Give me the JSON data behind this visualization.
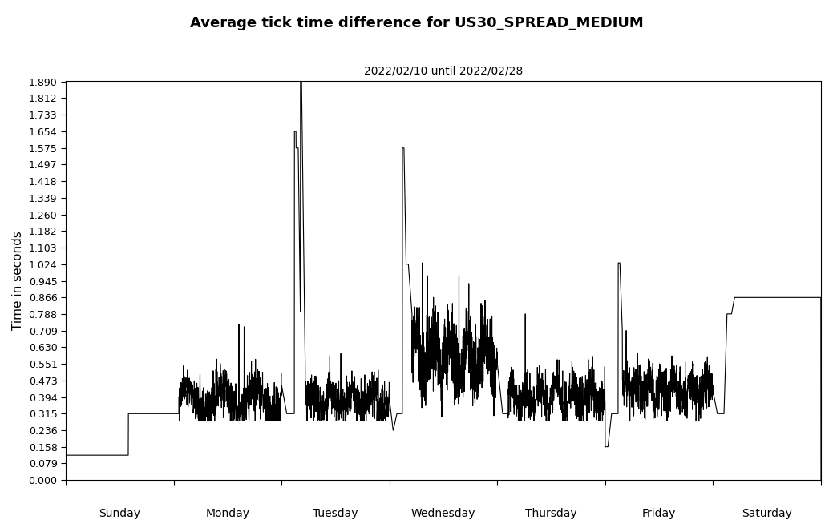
{
  "title": "Average tick time difference for US30_SPREAD_MEDIUM",
  "subtitle": "2022/02/10 until 2022/02/28",
  "ylabel": "Time in seconds",
  "yticks": [
    0.0,
    0.079,
    0.158,
    0.236,
    0.315,
    0.394,
    0.473,
    0.551,
    0.63,
    0.709,
    0.788,
    0.866,
    0.945,
    1.024,
    1.103,
    1.182,
    1.26,
    1.339,
    1.418,
    1.497,
    1.575,
    1.654,
    1.733,
    1.812,
    1.89
  ],
  "xtick_labels": [
    "Sunday",
    "Monday",
    "Tuesday",
    "Wednesday",
    "Thursday",
    "Friday",
    "Saturday"
  ],
  "ylim": [
    0.0,
    1.89
  ],
  "line_color": "black",
  "line_width": 0.8,
  "background_color": "white",
  "title_fontsize": 13,
  "subtitle_fontsize": 10,
  "ylabel_fontsize": 11,
  "ytick_fontsize": 9,
  "xtick_fontsize": 10
}
